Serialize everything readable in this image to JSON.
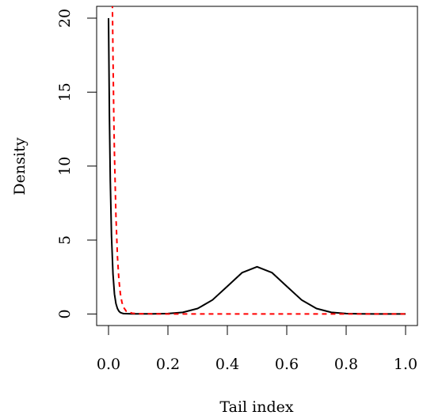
{
  "chart_data": {
    "type": "line",
    "title": "",
    "xlabel": "Tail index",
    "ylabel": "Density",
    "xlim": [
      -0.04,
      1.04
    ],
    "ylim": [
      -0.78,
      20.8
    ],
    "xticks": [
      0.0,
      0.2,
      0.4,
      0.6,
      0.8,
      1.0
    ],
    "xtick_labels": [
      "0.0",
      "0.2",
      "0.4",
      "0.6",
      "0.8",
      "1.0"
    ],
    "yticks": [
      0,
      5,
      10,
      15,
      20
    ],
    "ytick_labels": [
      "0",
      "5",
      "10",
      "15",
      "20"
    ],
    "grid": false,
    "legend": "none",
    "series": [
      {
        "color": "#000000",
        "style": "solid",
        "x": [
          0.0,
          0.003,
          0.006,
          0.01,
          0.015,
          0.02,
          0.025,
          0.03,
          0.035,
          0.04,
          0.045,
          0.05,
          0.06,
          0.08,
          0.1,
          0.15,
          0.2,
          0.25,
          0.3,
          0.35,
          0.4,
          0.45,
          0.5,
          0.55,
          0.6,
          0.65,
          0.7,
          0.75,
          0.8,
          0.85,
          0.9,
          1.0
        ],
        "y": [
          20.0,
          13.4,
          9.0,
          5.3,
          2.7,
          1.35,
          0.7,
          0.37,
          0.19,
          0.1,
          0.06,
          0.03,
          0.02,
          0.01,
          0.01,
          0.01,
          0.03,
          0.11,
          0.37,
          0.95,
          1.87,
          2.8,
          3.19,
          2.8,
          1.87,
          0.95,
          0.37,
          0.11,
          0.03,
          0.01,
          0.0,
          0.0
        ]
      },
      {
        "color": "#ff0000",
        "style": "dashed",
        "x": [
          0.013,
          0.015,
          0.018,
          0.02,
          0.025,
          0.03,
          0.035,
          0.04,
          0.045,
          0.05,
          0.06,
          0.08,
          0.1,
          0.2,
          0.4,
          0.6,
          0.8,
          1.0
        ],
        "y": [
          21.0,
          17.5,
          13.0,
          10.8,
          6.6,
          3.9,
          2.3,
          1.35,
          0.8,
          0.47,
          0.18,
          0.05,
          0.02,
          0.0,
          0.0,
          0.0,
          0.0,
          0.0
        ]
      }
    ]
  }
}
